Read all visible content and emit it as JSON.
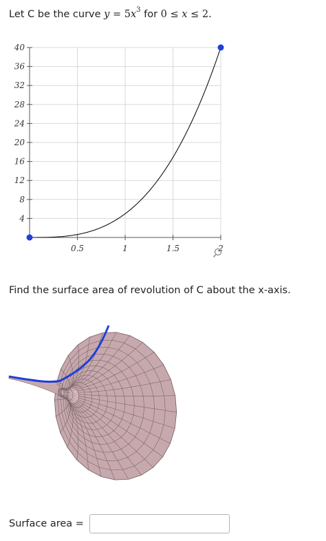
{
  "prompt": {
    "text_before": "Let C be the curve",
    "equation_lhs": "y",
    "equation_eq": " = 5",
    "equation_var": "x",
    "equation_exp": "3",
    "text_for": "for",
    "domain_lo": "0",
    "domain_le1": " ≤ ",
    "domain_var": "x",
    "domain_le2": " ≤ ",
    "domain_hi": "2."
  },
  "chart_data": {
    "type": "line",
    "function": "y = 5x^3",
    "xlim": [
      0,
      2
    ],
    "ylim": [
      0,
      40
    ],
    "x_ticks": [
      "0.5",
      "1",
      "1.5",
      "2"
    ],
    "y_ticks": [
      "4",
      "8",
      "12",
      "16",
      "20",
      "24",
      "28",
      "32",
      "36",
      "40"
    ],
    "points": [
      [
        0,
        0
      ],
      [
        2,
        40
      ]
    ],
    "grid": true,
    "point_color": "#1f3fd9"
  },
  "zoom_icon": "zoom-icon",
  "question": "Find the surface area of revolution of C about the x-axis.",
  "surface_image": {
    "surface_color": "#c7a9ad",
    "curve_color": "#1f3fd9"
  },
  "answer": {
    "label": "Surface area =",
    "value": "",
    "placeholder": ""
  }
}
